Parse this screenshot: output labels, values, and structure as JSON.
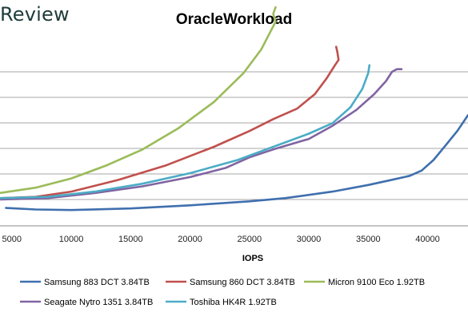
{
  "logo_text": "Review",
  "chart_data": {
    "type": "line",
    "title": "OracleWorkload",
    "xlabel": "IOPS",
    "ylabel": "",
    "xlim": [
      4000,
      43400
    ],
    "ylim": [
      0,
      8
    ],
    "x_ticks": [
      5000,
      10000,
      15000,
      20000,
      25000,
      30000,
      35000,
      40000
    ],
    "grid": "horizontal",
    "legend_position": "bottom",
    "series": [
      {
        "name": "Samsung 883 DCT 3.84TB",
        "color": "#3f6fae",
        "points": [
          [
            4500,
            0.68
          ],
          [
            7000,
            0.62
          ],
          [
            10000,
            0.6
          ],
          [
            15000,
            0.66
          ],
          [
            20000,
            0.78
          ],
          [
            25000,
            0.93
          ],
          [
            28000,
            1.05
          ],
          [
            32000,
            1.3
          ],
          [
            35000,
            1.55
          ],
          [
            37000,
            1.75
          ],
          [
            38500,
            1.9
          ],
          [
            39500,
            2.1
          ],
          [
            40500,
            2.5
          ],
          [
            41500,
            3.05
          ],
          [
            42500,
            3.6
          ],
          [
            43400,
            4.2
          ]
        ]
      },
      {
        "name": "Samsung 860 DCT 3.84TB",
        "color": "#c0504d",
        "points": [
          [
            4000,
            1.05
          ],
          [
            7000,
            1.1
          ],
          [
            10000,
            1.3
          ],
          [
            14000,
            1.75
          ],
          [
            18000,
            2.3
          ],
          [
            22000,
            3.0
          ],
          [
            25000,
            3.6
          ],
          [
            27000,
            4.05
          ],
          [
            29000,
            4.45
          ],
          [
            30500,
            5.0
          ],
          [
            31500,
            5.6
          ],
          [
            32200,
            6.1
          ],
          [
            32500,
            6.3
          ],
          [
            32400,
            6.6
          ],
          [
            32300,
            6.8
          ]
        ]
      },
      {
        "name": "Micron 9100 Eco 1.92TB",
        "color": "#9bbb59",
        "points": [
          [
            4000,
            1.25
          ],
          [
            7000,
            1.45
          ],
          [
            10000,
            1.8
          ],
          [
            13000,
            2.3
          ],
          [
            16000,
            2.9
          ],
          [
            19000,
            3.7
          ],
          [
            22000,
            4.7
          ],
          [
            24500,
            5.8
          ],
          [
            26000,
            6.7
          ],
          [
            26800,
            7.4
          ],
          [
            27200,
            7.75
          ],
          [
            27000,
            8.05
          ],
          [
            27200,
            8.3
          ]
        ]
      },
      {
        "name": "Seagate Nytro 1351 3.84TB",
        "color": "#8064a2",
        "points": [
          [
            4000,
            1.0
          ],
          [
            8000,
            1.05
          ],
          [
            12000,
            1.25
          ],
          [
            16000,
            1.5
          ],
          [
            20000,
            1.85
          ],
          [
            23000,
            2.2
          ],
          [
            25000,
            2.6
          ],
          [
            27000,
            2.9
          ],
          [
            30000,
            3.3
          ],
          [
            32000,
            3.8
          ],
          [
            34000,
            4.4
          ],
          [
            35500,
            5.0
          ],
          [
            36500,
            5.5
          ],
          [
            37000,
            5.85
          ],
          [
            37400,
            5.95
          ],
          [
            37800,
            5.95
          ]
        ]
      },
      {
        "name": "Toshiba HK4R 1.92TB",
        "color": "#4bacc6",
        "points": [
          [
            4000,
            1.05
          ],
          [
            8000,
            1.1
          ],
          [
            12000,
            1.3
          ],
          [
            16000,
            1.6
          ],
          [
            20000,
            2.0
          ],
          [
            24000,
            2.5
          ],
          [
            27000,
            3.0
          ],
          [
            30000,
            3.5
          ],
          [
            32000,
            3.9
          ],
          [
            33500,
            4.5
          ],
          [
            34500,
            5.2
          ],
          [
            35000,
            5.8
          ],
          [
            35100,
            6.1
          ]
        ]
      }
    ]
  }
}
